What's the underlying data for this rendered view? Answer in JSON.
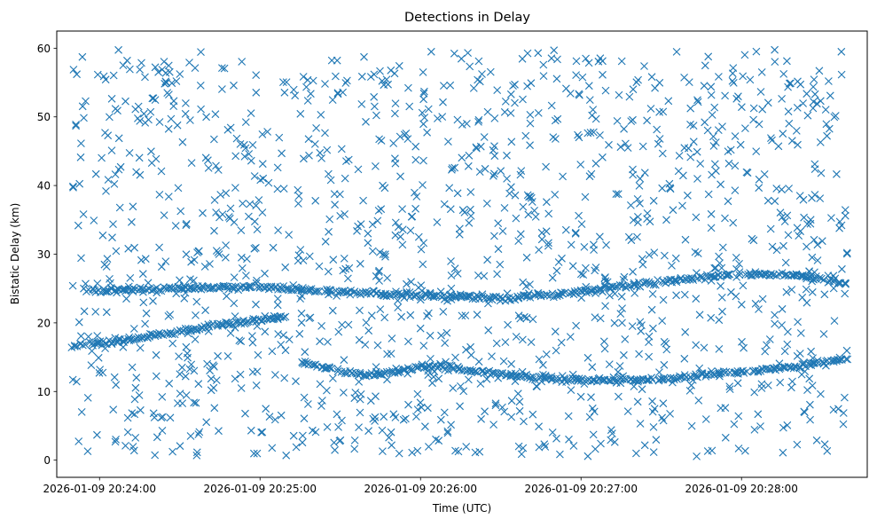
{
  "chart_data": {
    "type": "scatter",
    "title": "Detections in Delay",
    "xlabel": "Time (UTC)",
    "ylabel": "Bistatic Delay (km)",
    "x_axis": {
      "kind": "datetime",
      "range": [
        "2026-01-09 20:23:44",
        "2026-01-09 20:28:47"
      ],
      "ticks": [
        "2026-01-09 20:24:00",
        "2026-01-09 20:25:00",
        "2026-01-09 20:26:00",
        "2026-01-09 20:27:00",
        "2026-01-09 20:28:00"
      ],
      "tick_labels": [
        "2026-01-09 20:24:00",
        "2026-01-09 20:25:00",
        "2026-01-09 20:26:00",
        "2026-01-09 20:27:00",
        "2026-01-09 20:28:00"
      ]
    },
    "y_axis": {
      "range": [
        -2.5,
        62.5
      ],
      "ticks": [
        0,
        10,
        20,
        30,
        40,
        50,
        60
      ],
      "tick_labels": [
        "0",
        "10",
        "20",
        "30",
        "40",
        "50",
        "60"
      ]
    },
    "grid": false,
    "legend": null,
    "marker": "x",
    "color": "#1f77b4",
    "clutter": {
      "description": "uniform random detections",
      "count": 1400,
      "x_range": [
        "2026-01-09 20:23:50",
        "2026-01-09 20:28:40"
      ],
      "y_range": [
        0.5,
        60
      ]
    },
    "tracks": [
      {
        "points": [
          {
            "x": "2026-01-09 20:23:50",
            "y": 16.5
          },
          {
            "x": "2026-01-09 20:24:05",
            "y": 17.3
          },
          {
            "x": "2026-01-09 20:24:25",
            "y": 18.4
          },
          {
            "x": "2026-01-09 20:24:45",
            "y": 19.7
          },
          {
            "x": "2026-01-09 20:25:10",
            "y": 21.0
          }
        ]
      },
      {
        "points": [
          {
            "x": "2026-01-09 20:23:55",
            "y": 24.6
          },
          {
            "x": "2026-01-09 20:24:30",
            "y": 25.0
          },
          {
            "x": "2026-01-09 20:25:00",
            "y": 25.3
          },
          {
            "x": "2026-01-09 20:25:10",
            "y": 25.0
          },
          {
            "x": "2026-01-09 20:25:30",
            "y": 24.5
          },
          {
            "x": "2026-01-09 20:26:00",
            "y": 24.0
          },
          {
            "x": "2026-01-09 20:26:30",
            "y": 23.6
          },
          {
            "x": "2026-01-09 20:27:00",
            "y": 24.5
          },
          {
            "x": "2026-01-09 20:27:30",
            "y": 26.0
          },
          {
            "x": "2026-01-09 20:28:00",
            "y": 27.2
          },
          {
            "x": "2026-01-09 20:28:20",
            "y": 27.0
          },
          {
            "x": "2026-01-09 20:28:40",
            "y": 25.7
          }
        ]
      },
      {
        "points": [
          {
            "x": "2026-01-09 20:25:15",
            "y": 14.2
          },
          {
            "x": "2026-01-09 20:25:40",
            "y": 12.3
          },
          {
            "x": "2026-01-09 20:26:05",
            "y": 13.8
          },
          {
            "x": "2026-01-09 20:26:30",
            "y": 12.5
          },
          {
            "x": "2026-01-09 20:27:00",
            "y": 11.6
          },
          {
            "x": "2026-01-09 20:27:30",
            "y": 11.7
          },
          {
            "x": "2026-01-09 20:28:00",
            "y": 12.8
          },
          {
            "x": "2026-01-09 20:28:20",
            "y": 13.7
          },
          {
            "x": "2026-01-09 20:28:40",
            "y": 14.8
          }
        ]
      }
    ]
  }
}
